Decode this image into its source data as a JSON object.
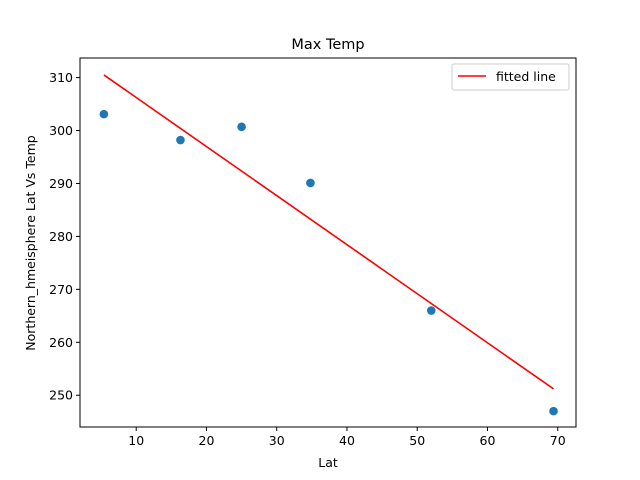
{
  "chart_data": {
    "type": "scatter",
    "title": "Max Temp",
    "xlabel": "Lat",
    "ylabel": "Northern_hmeisphere Lat Vs Temp",
    "xlim": [
      2.0,
      72.6
    ],
    "ylim": [
      244.0,
      313.7
    ],
    "xticks": [
      10,
      20,
      30,
      40,
      50,
      60,
      70
    ],
    "yticks": [
      250,
      260,
      270,
      280,
      290,
      300,
      310
    ],
    "grid": false,
    "legend_position": "top-right",
    "series": [
      {
        "kind": "scatter",
        "color": "#1f77b4",
        "x": [
          5.4,
          16.3,
          25.0,
          34.8,
          52.0,
          69.4
        ],
        "y": [
          303.1,
          298.2,
          300.7,
          290.1,
          266.0,
          247.0
        ]
      },
      {
        "kind": "line",
        "name": "fitted line",
        "color": "#ff0000",
        "x": [
          5.4,
          69.4
        ],
        "y": [
          310.5,
          251.2
        ]
      }
    ]
  }
}
